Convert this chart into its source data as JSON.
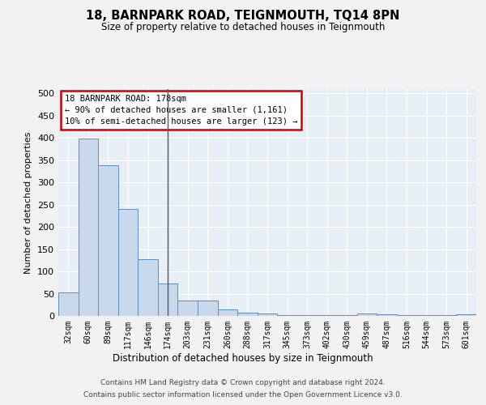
{
  "title": "18, BARNPARK ROAD, TEIGNMOUTH, TQ14 8PN",
  "subtitle": "Size of property relative to detached houses in Teignmouth",
  "xlabel": "Distribution of detached houses by size in Teignmouth",
  "ylabel": "Number of detached properties",
  "categories": [
    "32sqm",
    "60sqm",
    "89sqm",
    "117sqm",
    "146sqm",
    "174sqm",
    "203sqm",
    "231sqm",
    "260sqm",
    "288sqm",
    "317sqm",
    "345sqm",
    "373sqm",
    "402sqm",
    "430sqm",
    "459sqm",
    "487sqm",
    "516sqm",
    "544sqm",
    "573sqm",
    "601sqm"
  ],
  "values": [
    52,
    399,
    338,
    241,
    128,
    72,
    35,
    35,
    14,
    7,
    5,
    2,
    2,
    1,
    1,
    5,
    3,
    1,
    1,
    1,
    3
  ],
  "bar_color": "#c9d9ed",
  "bar_edge_color": "#5b8dc8",
  "highlight_index": 5,
  "highlight_line_color": "#555555",
  "annotation_text": "18 BARNPARK ROAD: 178sqm\n← 90% of detached houses are smaller (1,161)\n10% of semi-detached houses are larger (123) →",
  "annotation_box_edge_color": "#cc0000",
  "ylim_max": 510,
  "yticks": [
    0,
    50,
    100,
    150,
    200,
    250,
    300,
    350,
    400,
    450,
    500
  ],
  "bg_color": "#e8eef5",
  "grid_color": "#ffffff",
  "fig_bg_color": "#f2f2f2",
  "footer1": "Contains HM Land Registry data © Crown copyright and database right 2024.",
  "footer2": "Contains public sector information licensed under the Open Government Licence v3.0."
}
